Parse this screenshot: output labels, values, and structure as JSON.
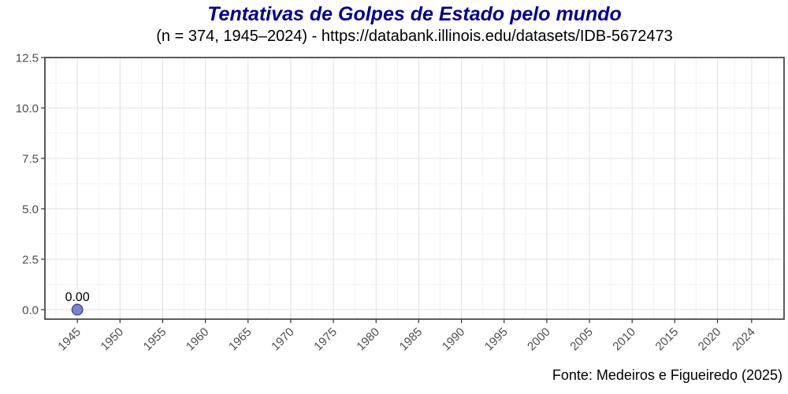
{
  "header": {
    "title": "Tentativas de Golpes de Estado pelo mundo",
    "subtitle": "(n = 374, 1945–2024) - https://databank.illinois.edu/datasets/IDB-5672473"
  },
  "footer": {
    "caption": "Fonte: Medeiros e Figueiredo (2025)"
  },
  "colors": {
    "title": "#00008B",
    "subtitle": "#000000",
    "caption": "#000000",
    "axis_text": "#4d4d4d",
    "tick": "#333333",
    "panel_border": "#343434",
    "grid_major": "#e3e3e3",
    "grid_minor": "#f1f1f1",
    "point_fill": "#7278c8",
    "point_stroke": "#3d4299",
    "point_label": "#000000"
  },
  "chart_data": {
    "type": "scatter",
    "title": "Tentativas de Golpes de Estado pelo mundo",
    "subtitle": "(n = 374, 1945–2024) - https://databank.illinois.edu/datasets/IDB-5672473",
    "caption": "Fonte: Medeiros e Figueiredo (2025)",
    "xlabel": "",
    "ylabel": "",
    "x_breaks": [
      1945,
      1950,
      1955,
      1960,
      1965,
      1970,
      1975,
      1980,
      1985,
      1990,
      1995,
      2000,
      2005,
      2010,
      2015,
      2020,
      2024
    ],
    "y_breaks": [
      0.0,
      2.5,
      5.0,
      7.5,
      10.0,
      12.5
    ],
    "xlim": [
      1941.2,
      2027.8
    ],
    "ylim": [
      -0.47,
      12.5
    ],
    "grid": true,
    "legend": false,
    "points": [
      {
        "x": 1945,
        "y": 0,
        "label": "0.00"
      }
    ]
  }
}
